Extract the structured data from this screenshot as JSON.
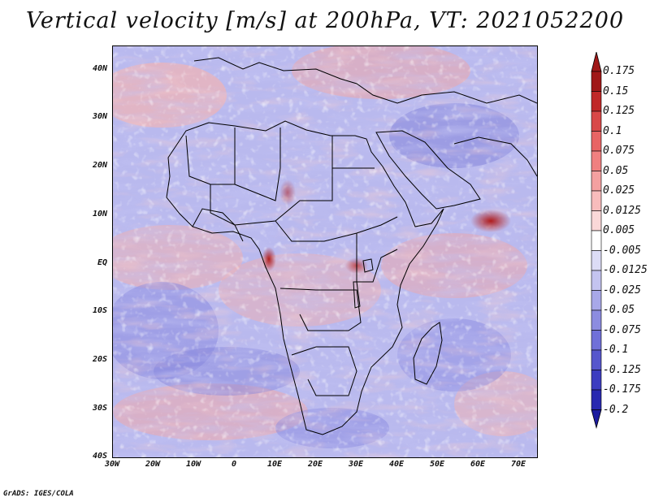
{
  "title": "Vertical velocity [m/s] at 200hPa, VT: 2021052200",
  "credit": "GrADS: IGES/COLA",
  "latitude_ticks": [
    "40N",
    "30N",
    "20N",
    "10N",
    "EQ",
    "10S",
    "20S",
    "30S",
    "40S"
  ],
  "longitude_ticks": [
    "30W",
    "20W",
    "10W",
    "0",
    "10E",
    "20E",
    "30E",
    "40E",
    "50E",
    "60E",
    "70E"
  ],
  "map_extent": {
    "lon": [
      -30,
      75
    ],
    "lat": [
      -40,
      44
    ]
  },
  "colorbar": {
    "labels": [
      "0.175",
      "0.15",
      "0.125",
      "0.1",
      "0.075",
      "0.05",
      "0.025",
      "0.0125",
      "0.005",
      "-0.005",
      "-0.0125",
      "-0.025",
      "-0.05",
      "-0.075",
      "-0.1",
      "-0.125",
      "-0.175",
      "-0.2"
    ],
    "colors": [
      "#a01818",
      "#c02828",
      "#d84848",
      "#e86464",
      "#f08080",
      "#f4a0a0",
      "#f8bcbc",
      "#fad8d8",
      "#ffffff",
      "#dcdcf6",
      "#c4c4f0",
      "#a8a8e8",
      "#8c8ce0",
      "#7070d8",
      "#5656cc",
      "#3c3cc0",
      "#2828b0",
      "#1c1ca0"
    ],
    "top_arrow_color": "#a01818",
    "bottom_arrow_color": "#1c1ca0"
  },
  "colors": {
    "background_field": "#b9b9ee",
    "positive_field": "#f2a8a8",
    "strong_positive": "#b01c1c",
    "negative_field": "#8a8ae0",
    "coastline": "#000000"
  }
}
